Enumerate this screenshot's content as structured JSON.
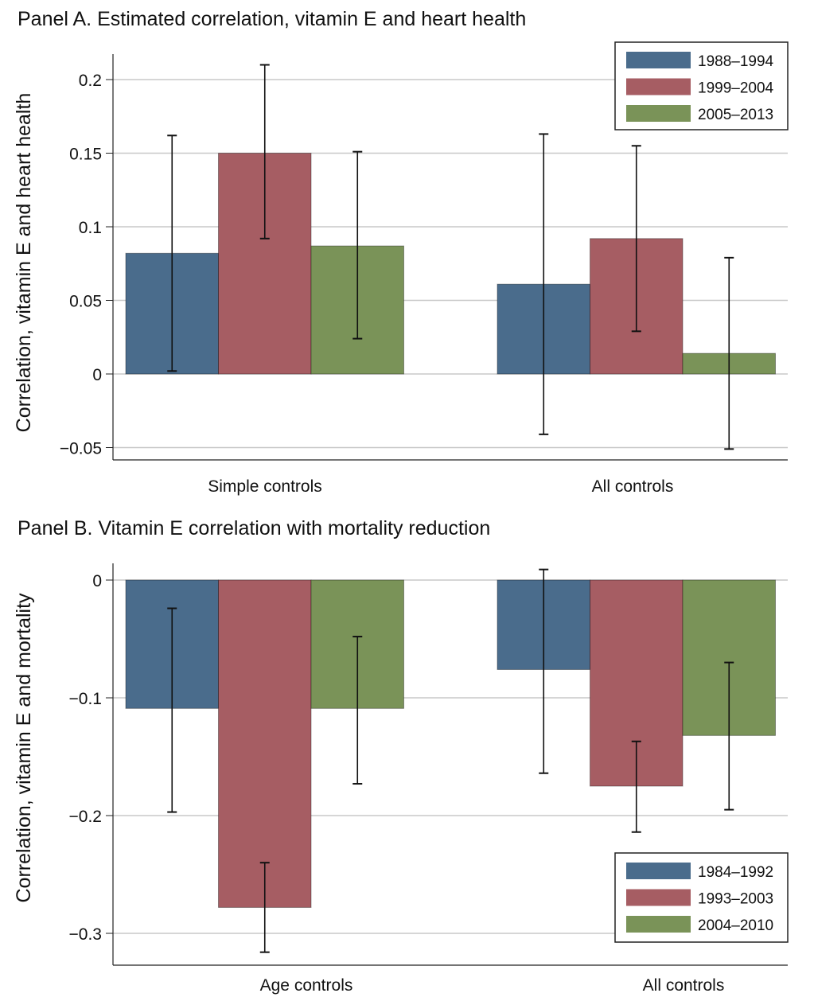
{
  "chart_data": [
    {
      "type": "bar",
      "title": "Panel A. Estimated correlation, vitamin E and heart health",
      "ylabel": "Correlation, vitamin E and heart health",
      "xlabel": "",
      "ylim": [
        -0.058,
        0.218
      ],
      "yticks": [
        -0.05,
        0,
        0.05,
        0.1,
        0.15,
        0.2
      ],
      "ytick_labels": [
        "−0.05",
        "0",
        "0.05",
        "0.1",
        "0.15",
        "0.2"
      ],
      "grid": true,
      "legend_position": "top-right",
      "categories": [
        "Simple controls",
        "All controls"
      ],
      "series": [
        {
          "name": "1988–1994",
          "color": "#4a6c8c",
          "values": [
            0.082,
            0.061
          ],
          "ci_low": [
            0.002,
            -0.041
          ],
          "ci_high": [
            0.162,
            0.163
          ]
        },
        {
          "name": "1999–2004",
          "color": "#a65d63",
          "values": [
            0.15,
            0.092
          ],
          "ci_low": [
            0.092,
            0.029
          ],
          "ci_high": [
            0.21,
            0.155
          ]
        },
        {
          "name": "2005–2013",
          "color": "#7a9358",
          "values": [
            0.087,
            0.014
          ],
          "ci_low": [
            0.024,
            -0.051
          ],
          "ci_high": [
            0.151,
            0.079
          ]
        }
      ]
    },
    {
      "type": "bar",
      "title": "Panel B. Vitamin E correlation with mortality reduction",
      "ylabel": "Correlation, vitamin E and mortality",
      "xlabel": "",
      "ylim": [
        -0.327,
        0.014
      ],
      "yticks": [
        -0.3,
        -0.2,
        -0.1,
        0
      ],
      "ytick_labels": [
        "−0.3",
        "−0.2",
        "−0.1",
        "0"
      ],
      "grid": true,
      "legend_position": "bottom-right",
      "categories": [
        "Age controls",
        "All controls"
      ],
      "series": [
        {
          "name": "1984–1992",
          "color": "#4a6c8c",
          "values": [
            -0.109,
            -0.076
          ],
          "ci_low": [
            -0.197,
            -0.164
          ],
          "ci_high": [
            -0.024,
            0.009
          ]
        },
        {
          "name": "1993–2003",
          "color": "#a65d63",
          "values": [
            -0.278,
            -0.175
          ],
          "ci_low": [
            -0.316,
            -0.214
          ],
          "ci_high": [
            -0.24,
            -0.137
          ]
        },
        {
          "name": "2004–2010",
          "color": "#7a9358",
          "values": [
            -0.109,
            -0.132
          ],
          "ci_low": [
            -0.173,
            -0.195
          ],
          "ci_high": [
            -0.048,
            -0.07
          ]
        }
      ]
    }
  ]
}
